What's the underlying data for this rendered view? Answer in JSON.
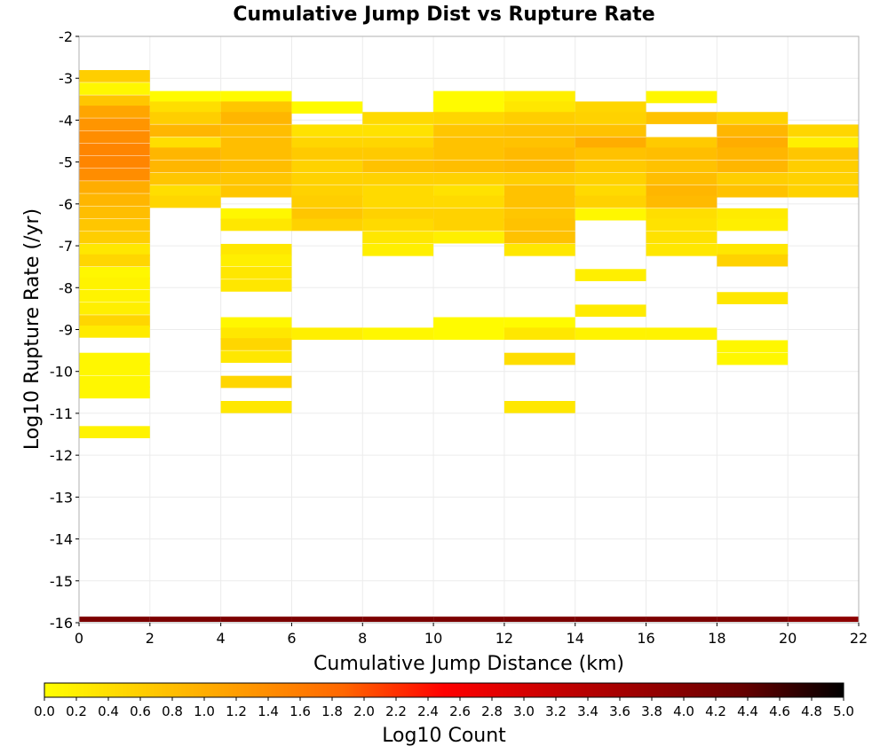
{
  "chart_data": {
    "type": "heatmap",
    "title": "Cumulative Jump Dist vs Rupture Rate",
    "xlabel": "Cumulative Jump Distance (km)",
    "ylabel": "Log10 Rupture Rate (/yr)",
    "xlim": [
      0,
      22
    ],
    "ylim": [
      -16,
      -2
    ],
    "x_ticks": [
      "0",
      "2",
      "4",
      "6",
      "8",
      "10",
      "12",
      "14",
      "16",
      "18",
      "20",
      "22"
    ],
    "y_ticks": [
      "-2",
      "-3",
      "-4",
      "-5",
      "-6",
      "-7",
      "-8",
      "-9",
      "-10",
      "-11",
      "-12",
      "-13",
      "-14",
      "-15",
      "-16"
    ],
    "x_bin_width": 2,
    "y_bin_width": 0.29,
    "grid": true,
    "colorbar": {
      "label": "Log10 Count",
      "min": 0.0,
      "max": 5.0,
      "ticks": [
        "0.0",
        "0.2",
        "0.4",
        "0.6",
        "0.8",
        "1.0",
        "1.2",
        "1.4",
        "1.6",
        "1.8",
        "2.0",
        "2.2",
        "2.4",
        "2.6",
        "2.8",
        "3.0",
        "3.2",
        "3.4",
        "3.6",
        "3.8",
        "4.0",
        "4.2",
        "4.4",
        "4.6",
        "4.8",
        "5.0"
      ],
      "colors": [
        "#ffff00",
        "#ffcc00",
        "#ff9900",
        "#ff6600",
        "#ff0000",
        "#cc0000",
        "#990000",
        "#660000",
        "#000000"
      ]
    },
    "cells": [
      {
        "x": 0,
        "bins": [
          [
            -2.95,
            0.6
          ],
          [
            -3.25,
            0.1
          ],
          [
            -3.55,
            0.7
          ],
          [
            -3.8,
            1.1
          ],
          [
            -4.1,
            1.3
          ],
          [
            -4.4,
            1.4
          ],
          [
            -4.7,
            1.5
          ],
          [
            -5.0,
            1.5
          ],
          [
            -5.3,
            1.4
          ],
          [
            -5.6,
            1.0
          ],
          [
            -5.9,
            0.9
          ],
          [
            -6.2,
            0.8
          ],
          [
            -6.5,
            0.7
          ],
          [
            -6.8,
            0.6
          ],
          [
            -7.1,
            0.3
          ],
          [
            -7.35,
            0.5
          ],
          [
            -7.65,
            0.1
          ],
          [
            -7.9,
            0.15
          ],
          [
            -8.2,
            0.15
          ],
          [
            -8.5,
            0.2
          ],
          [
            -8.8,
            0.5
          ],
          [
            -9.05,
            0.25
          ],
          [
            -9.7,
            0.1
          ],
          [
            -9.95,
            0.1
          ],
          [
            -10.25,
            0.1
          ],
          [
            -10.5,
            0.1
          ],
          [
            -11.45,
            0.15
          ],
          [
            -16.0,
            4.1
          ]
        ]
      },
      {
        "x": 2,
        "bins": [
          [
            -3.45,
            0.05
          ],
          [
            -3.7,
            0.4
          ],
          [
            -3.95,
            0.6
          ],
          [
            -4.25,
            0.9
          ],
          [
            -4.55,
            0.4
          ],
          [
            -4.8,
            0.9
          ],
          [
            -5.1,
            0.9
          ],
          [
            -5.4,
            0.7
          ],
          [
            -5.7,
            0.4
          ],
          [
            -5.95,
            0.5
          ],
          [
            -16.0,
            4.1
          ]
        ]
      },
      {
        "x": 4,
        "bins": [
          [
            -3.45,
            0.05
          ],
          [
            -3.7,
            0.7
          ],
          [
            -3.95,
            0.9
          ],
          [
            -4.25,
            0.8
          ],
          [
            -4.55,
            0.8
          ],
          [
            -4.8,
            0.8
          ],
          [
            -5.1,
            0.8
          ],
          [
            -5.4,
            0.7
          ],
          [
            -5.7,
            0.7
          ],
          [
            -6.25,
            0.1
          ],
          [
            -6.5,
            0.3
          ],
          [
            -7.1,
            0.3
          ],
          [
            -7.35,
            0.2
          ],
          [
            -7.65,
            0.3
          ],
          [
            -7.95,
            0.3
          ],
          [
            -8.85,
            0.1
          ],
          [
            -9.1,
            0.3
          ],
          [
            -9.35,
            0.5
          ],
          [
            -9.65,
            0.3
          ],
          [
            -10.25,
            0.5
          ],
          [
            -10.85,
            0.3
          ],
          [
            -16.0,
            4.1
          ]
        ]
      },
      {
        "x": 6,
        "bins": [
          [
            -3.7,
            0.05
          ],
          [
            -4.25,
            0.35
          ],
          [
            -4.55,
            0.5
          ],
          [
            -4.8,
            0.65
          ],
          [
            -5.1,
            0.55
          ],
          [
            -5.4,
            0.55
          ],
          [
            -5.7,
            0.55
          ],
          [
            -5.95,
            0.6
          ],
          [
            -6.25,
            0.7
          ],
          [
            -6.5,
            0.55
          ],
          [
            -9.1,
            0.2
          ],
          [
            -16.0,
            4.1
          ]
        ]
      },
      {
        "x": 8,
        "bins": [
          [
            -3.95,
            0.45
          ],
          [
            -4.25,
            0.35
          ],
          [
            -4.55,
            0.5
          ],
          [
            -4.8,
            0.65
          ],
          [
            -5.1,
            0.75
          ],
          [
            -5.4,
            0.55
          ],
          [
            -5.7,
            0.45
          ],
          [
            -5.95,
            0.45
          ],
          [
            -6.25,
            0.55
          ],
          [
            -6.5,
            0.45
          ],
          [
            -6.8,
            0.3
          ],
          [
            -7.1,
            0.2
          ],
          [
            -9.1,
            0.1
          ],
          [
            -16.0,
            4.1
          ]
        ]
      },
      {
        "x": 10,
        "bins": [
          [
            -3.45,
            0.05
          ],
          [
            -3.7,
            0.05
          ],
          [
            -3.95,
            0.5
          ],
          [
            -4.25,
            0.7
          ],
          [
            -4.55,
            0.75
          ],
          [
            -4.8,
            0.75
          ],
          [
            -5.1,
            0.8
          ],
          [
            -5.4,
            0.55
          ],
          [
            -5.7,
            0.35
          ],
          [
            -5.95,
            0.45
          ],
          [
            -6.25,
            0.55
          ],
          [
            -6.5,
            0.55
          ],
          [
            -6.8,
            0.2
          ],
          [
            -8.85,
            0.05
          ],
          [
            -9.1,
            0.05
          ],
          [
            -16.0,
            4.1
          ]
        ]
      },
      {
        "x": 12,
        "bins": [
          [
            -3.45,
            0.2
          ],
          [
            -3.7,
            0.3
          ],
          [
            -3.95,
            0.6
          ],
          [
            -4.25,
            0.75
          ],
          [
            -4.55,
            0.75
          ],
          [
            -4.8,
            0.85
          ],
          [
            -5.1,
            0.85
          ],
          [
            -5.4,
            0.6
          ],
          [
            -5.7,
            0.75
          ],
          [
            -5.95,
            0.75
          ],
          [
            -6.25,
            0.7
          ],
          [
            -6.5,
            0.75
          ],
          [
            -6.8,
            0.75
          ],
          [
            -7.1,
            0.3
          ],
          [
            -8.85,
            0.05
          ],
          [
            -9.1,
            0.3
          ],
          [
            -9.7,
            0.4
          ],
          [
            -10.85,
            0.3
          ],
          [
            -16.0,
            4.1
          ]
        ]
      },
      {
        "x": 14,
        "bins": [
          [
            -3.7,
            0.5
          ],
          [
            -3.95,
            0.55
          ],
          [
            -4.25,
            0.75
          ],
          [
            -4.55,
            1.0
          ],
          [
            -4.8,
            0.75
          ],
          [
            -5.1,
            0.65
          ],
          [
            -5.4,
            0.55
          ],
          [
            -5.7,
            0.45
          ],
          [
            -5.95,
            0.55
          ],
          [
            -6.25,
            0.1
          ],
          [
            -7.7,
            0.2
          ],
          [
            -8.55,
            0.25
          ],
          [
            -9.1,
            0.15
          ],
          [
            -16.0,
            4.1
          ]
        ]
      },
      {
        "x": 16,
        "bins": [
          [
            -3.45,
            0.1
          ],
          [
            -3.95,
            0.75
          ],
          [
            -4.55,
            0.65
          ],
          [
            -4.8,
            0.8
          ],
          [
            -5.1,
            0.75
          ],
          [
            -5.4,
            0.8
          ],
          [
            -5.7,
            0.9
          ],
          [
            -5.95,
            0.85
          ],
          [
            -6.25,
            0.4
          ],
          [
            -6.5,
            0.35
          ],
          [
            -6.8,
            0.35
          ],
          [
            -7.1,
            0.3
          ],
          [
            -9.1,
            0.15
          ],
          [
            -16.0,
            4.1
          ]
        ]
      },
      {
        "x": 18,
        "bins": [
          [
            -3.95,
            0.55
          ],
          [
            -4.25,
            0.9
          ],
          [
            -4.55,
            1.0
          ],
          [
            -4.8,
            0.9
          ],
          [
            -5.1,
            0.9
          ],
          [
            -5.4,
            0.6
          ],
          [
            -5.7,
            0.75
          ],
          [
            -6.25,
            0.25
          ],
          [
            -6.5,
            0.2
          ],
          [
            -7.1,
            0.3
          ],
          [
            -7.35,
            0.55
          ],
          [
            -8.25,
            0.3
          ],
          [
            -9.4,
            0.1
          ],
          [
            -9.7,
            0.1
          ],
          [
            -16.0,
            4.1
          ]
        ]
      },
      {
        "x": 20,
        "bins": [
          [
            -4.25,
            0.5
          ],
          [
            -4.55,
            0.2
          ],
          [
            -4.8,
            0.7
          ],
          [
            -5.1,
            0.6
          ],
          [
            -5.4,
            0.55
          ],
          [
            -5.7,
            0.55
          ],
          [
            -16.0,
            3.9
          ]
        ]
      }
    ]
  }
}
